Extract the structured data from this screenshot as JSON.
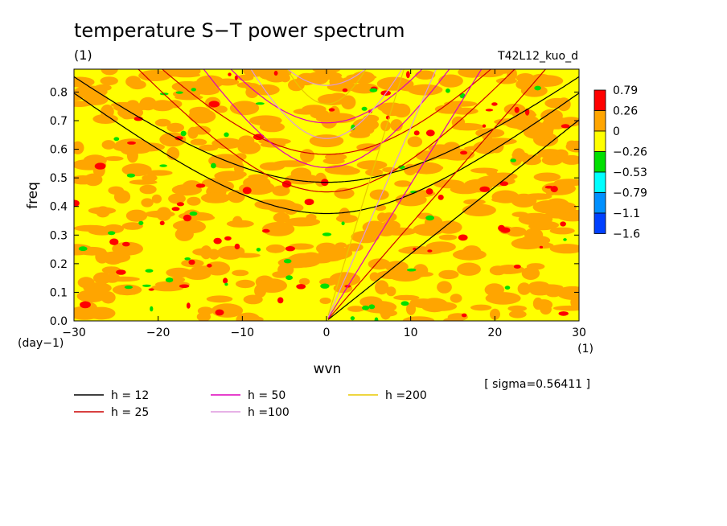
{
  "chart_data": {
    "type": "heatmap",
    "title": "temperature S−T power spectrum",
    "subtitle_left": "(1)",
    "subtitle_right": "T42L12_kuo_d",
    "xlabel": "wvn",
    "ylabel": "freq",
    "x_unit": "(1)",
    "y_unit": "(day−1)",
    "sigma_note": "[ sigma=0.56411 ]",
    "xlim": [
      -30,
      30
    ],
    "ylim": [
      0,
      0.88
    ],
    "xticks": [
      -30,
      -20,
      -10,
      0,
      10,
      20,
      30
    ],
    "xtick_labels": [
      "−30",
      "−20",
      "−10",
      "0",
      "10",
      "20",
      "30"
    ],
    "yticks": [
      0.0,
      0.1,
      0.2,
      0.3,
      0.4,
      0.5,
      0.6,
      0.7,
      0.8
    ],
    "ytick_labels": [
      "0.0",
      "0.1",
      "0.2",
      "0.3",
      "0.4",
      "0.5",
      "0.6",
      "0.7",
      "0.8"
    ],
    "colorbar": {
      "labels": [
        "0.79",
        "0.26",
        "0",
        "−0.26",
        "−0.53",
        "−0.79",
        "−1.1",
        "−1.6"
      ],
      "colors": [
        "#ff0000",
        "#ffa500",
        "#ffff00",
        "#00e000",
        "#00ffff",
        "#0090ff",
        "#0040ff"
      ]
    },
    "field_levels": [
      {
        "color": "#ffff00",
        "fraction": 0.48
      },
      {
        "color": "#ffa500",
        "fraction": 0.47
      },
      {
        "color": "#ff0000",
        "fraction": 0.03
      },
      {
        "color": "#00e000",
        "fraction": 0.02
      }
    ],
    "dispersion_curves": [
      {
        "label": "h = 12",
        "h": 12,
        "color": "#000000"
      },
      {
        "label": "h = 25",
        "h": 25,
        "color": "#cc0000"
      },
      {
        "label": "h = 50",
        "h": 50,
        "color": "#dd00bb"
      },
      {
        "label": "h =100",
        "h": 100,
        "color": "#dd99dd"
      },
      {
        "label": "h =200",
        "h": 200,
        "color": "#e8c800"
      }
    ]
  }
}
